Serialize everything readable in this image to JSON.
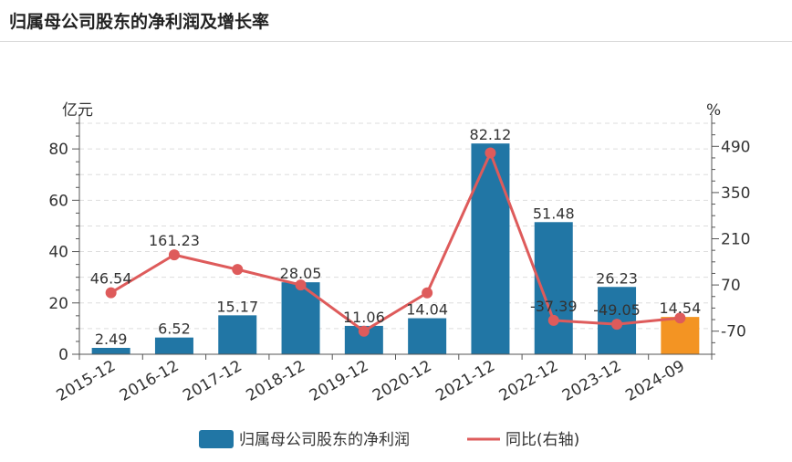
{
  "header": {
    "title": "归属母公司股东的净利润及增长率"
  },
  "chart_data": {
    "type": "bar",
    "categories": [
      "2015-12",
      "2016-12",
      "2017-12",
      "2018-12",
      "2019-12",
      "2020-12",
      "2021-12",
      "2022-12",
      "2023-12",
      "2024-09"
    ],
    "series": [
      {
        "name": "归属母公司股东的净利润",
        "type": "bar",
        "axis": "left",
        "values": [
          2.49,
          6.52,
          15.17,
          28.05,
          11.06,
          14.04,
          82.12,
          51.48,
          26.23,
          14.54
        ],
        "labels": [
          "2.49",
          "6.52",
          "15.17",
          "28.05",
          "11.06",
          "14.04",
          "82.12",
          "51.48",
          "26.23",
          "14.54"
        ]
      },
      {
        "name": "同比(右轴)",
        "type": "line",
        "axis": "right",
        "values": [
          46.54,
          161.23,
          117,
          70,
          -70,
          46,
          470,
          -37.39,
          -49.05,
          -30
        ],
        "labels": [
          "46.54",
          "161.23",
          "",
          "",
          "",
          "",
          "",
          "-37.39",
          "-49.05",
          ""
        ]
      }
    ],
    "y_left": {
      "unit": "亿元",
      "ylim": [
        0,
        90
      ],
      "ticks": [
        0,
        20,
        40,
        60,
        80
      ]
    },
    "y_right": {
      "unit": "%",
      "ylim": [
        -140,
        560
      ],
      "ticks": [
        -70,
        70,
        210,
        350,
        490
      ]
    },
    "colors": {
      "bar": "#2176a5",
      "bar_highlight": "#f39423",
      "line": "#de5b5b",
      "grid": "#dddddd",
      "axis": "#555555"
    },
    "highlight_index": 9,
    "grid": true,
    "legend_position": "bottom"
  }
}
